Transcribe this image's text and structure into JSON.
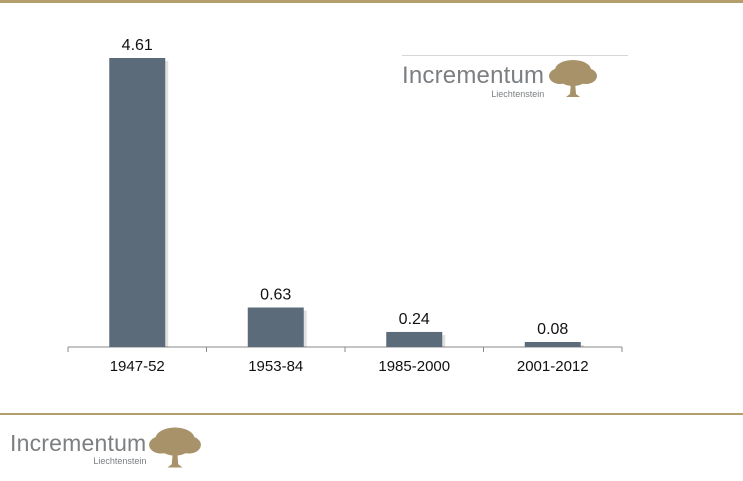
{
  "colors": {
    "accent": "#b39f6b",
    "bar": "#5c6b7a",
    "logo_text": "#7b7f82",
    "tree": "#a8926a",
    "axis": "#8a8a8a"
  },
  "logo": {
    "main": "Incrementum",
    "sub": "Liechtenstein",
    "icon": "tree-icon"
  },
  "chart_data": {
    "type": "bar",
    "categories": [
      "1947-52",
      "1953-84",
      "1985-2000",
      "2001-2012"
    ],
    "values": [
      4.61,
      0.63,
      0.24,
      0.08
    ],
    "value_labels": [
      "4.61",
      "0.63",
      "0.24",
      "0.08"
    ],
    "title": "",
    "xlabel": "",
    "ylabel": "",
    "ylim": [
      0,
      4.61
    ],
    "grid": false,
    "legend": "none"
  }
}
